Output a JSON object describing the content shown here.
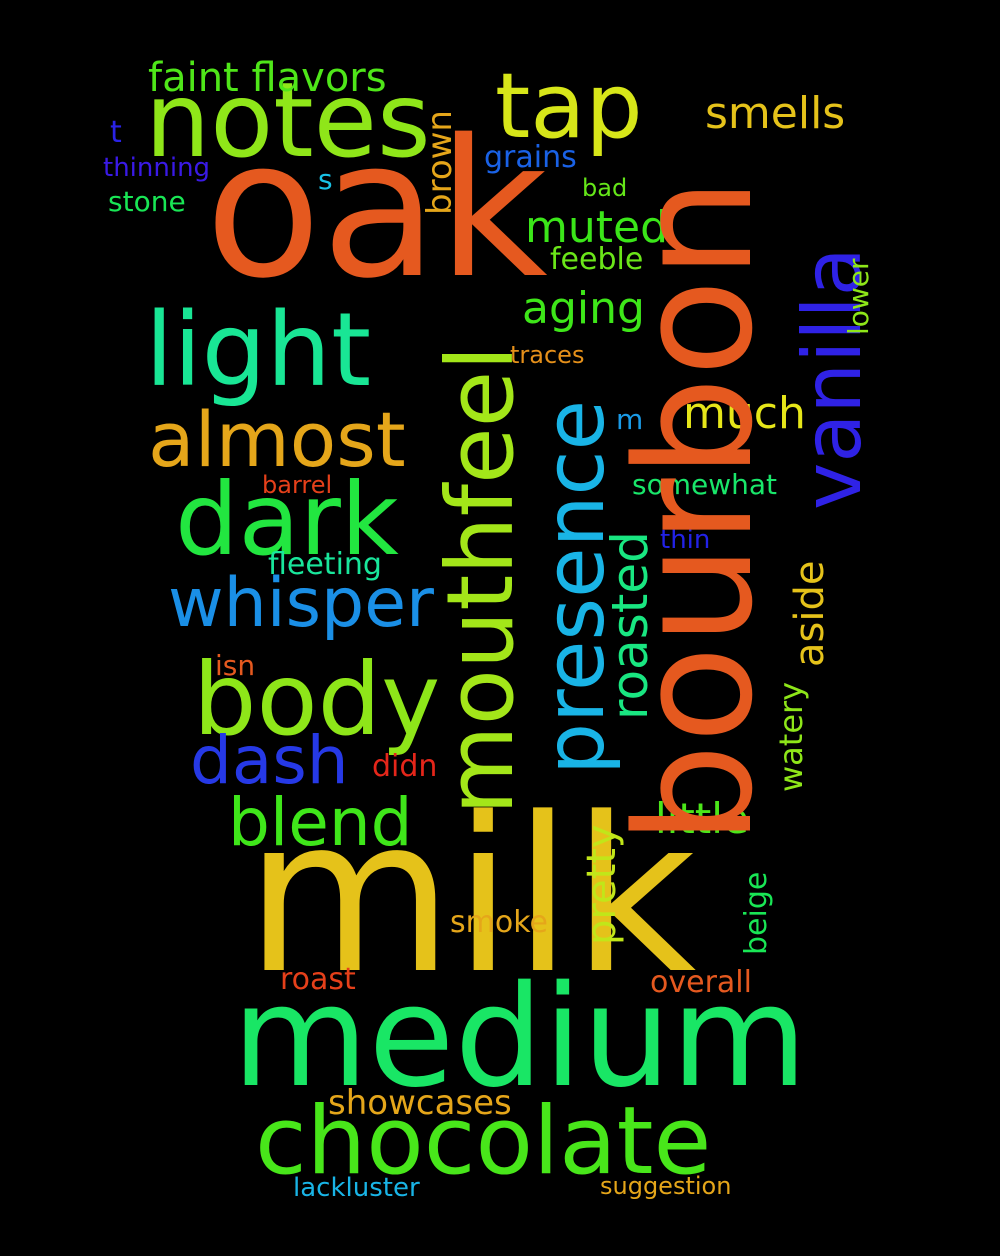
{
  "words": {
    "milk": {
      "text": "milk",
      "color": "#e5c21a"
    },
    "oak": {
      "text": "oak",
      "color": "#e5591f"
    },
    "bourbon": {
      "text": "bourbon",
      "color": "#e5591f"
    },
    "medium": {
      "text": "medium",
      "color": "#19e665"
    },
    "notes": {
      "text": "notes",
      "color": "#8fe619"
    },
    "mouthfeel": {
      "text": "mouthfeel",
      "color": "#a3e619"
    },
    "chocolate": {
      "text": "chocolate",
      "color": "#48e61a"
    },
    "light": {
      "text": "light",
      "color": "#19e695"
    },
    "dark": {
      "text": "dark",
      "color": "#22e640"
    },
    "body": {
      "text": "body",
      "color": "#8ee619"
    },
    "tap": {
      "text": "tap",
      "color": "#d7e619"
    },
    "presence": {
      "text": "presence",
      "color": "#19b4e6"
    },
    "vanilla": {
      "text": "vanilla",
      "color": "#2f22e6"
    },
    "almost": {
      "text": "almost",
      "color": "#e5a61a"
    },
    "whisper": {
      "text": "whisper",
      "color": "#1a8fe6"
    },
    "dash": {
      "text": "dash",
      "color": "#2639e6"
    },
    "blend": {
      "text": "blend",
      "color": "#3fe61a"
    },
    "roasted": {
      "text": "roasted",
      "color": "#19e681"
    },
    "faint": {
      "text": "faint flavors",
      "color": "#4fe619"
    },
    "smells": {
      "text": "smells",
      "color": "#e5c21a"
    },
    "muted": {
      "text": "muted",
      "color": "#3be619"
    },
    "aging": {
      "text": "aging",
      "color": "#3ee619"
    },
    "much": {
      "text": "much",
      "color": "#e6e619"
    },
    "little": {
      "text": "little",
      "color": "#4be619"
    },
    "aside": {
      "text": "aside",
      "color": "#e5c21a"
    },
    "pretty": {
      "text": "pretty",
      "color": "#c1e619"
    },
    "brown": {
      "text": "brown",
      "color": "#e5a61a"
    },
    "grains": {
      "text": "grains",
      "color": "#1a62e6"
    },
    "feeble": {
      "text": "feeble",
      "color": "#6be619"
    },
    "somewhat": {
      "text": "somewhat",
      "color": "#19e66a"
    },
    "fleeting": {
      "text": "fleeting",
      "color": "#19e69b"
    },
    "smoke": {
      "text": "smoke",
      "color": "#e5a61a"
    },
    "roast": {
      "text": "roast",
      "color": "#e5401a"
    },
    "overall": {
      "text": "overall",
      "color": "#e5591f"
    },
    "showcases": {
      "text": "showcases",
      "color": "#e5a61a"
    },
    "watery": {
      "text": "watery",
      "color": "#8ee619"
    },
    "beige": {
      "text": "beige",
      "color": "#19e655"
    },
    "lower": {
      "text": "lower",
      "color": "#8ee619"
    },
    "thinning": {
      "text": "thinning",
      "color": "#3a1ae6"
    },
    "stone": {
      "text": "stone",
      "color": "#19e655"
    },
    "t": {
      "text": "t",
      "color": "#2a22e6"
    },
    "s": {
      "text": "s",
      "color": "#19c2e6"
    },
    "bad": {
      "text": "bad",
      "color": "#65e619"
    },
    "traces": {
      "text": "traces",
      "color": "#e5901a"
    },
    "m": {
      "text": "m",
      "color": "#1a9ae6"
    },
    "barrel": {
      "text": "barrel",
      "color": "#e5401a"
    },
    "thin": {
      "text": "thin",
      "color": "#2222e6"
    },
    "isn": {
      "text": "isn",
      "color": "#e5591f"
    },
    "didn": {
      "text": "didn",
      "color": "#e5261a"
    },
    "lackluster": {
      "text": "lackluster",
      "color": "#19b4e6"
    },
    "suggestion": {
      "text": "suggestion",
      "color": "#e5a61a"
    }
  }
}
